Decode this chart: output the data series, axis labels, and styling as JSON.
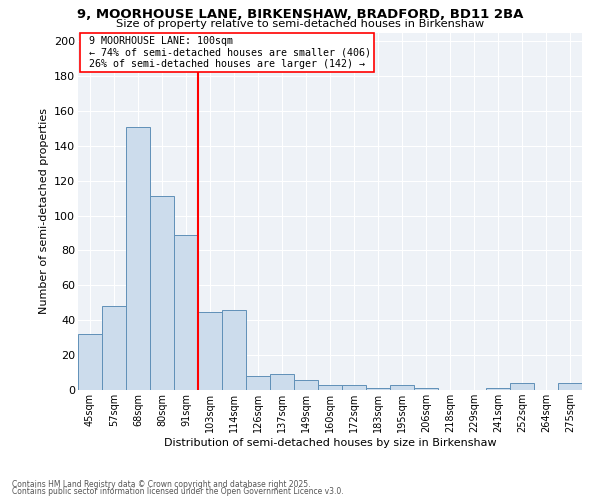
{
  "title1": "9, MOORHOUSE LANE, BIRKENSHAW, BRADFORD, BD11 2BA",
  "title2": "Size of property relative to semi-detached houses in Birkenshaw",
  "xlabel": "Distribution of semi-detached houses by size in Birkenshaw",
  "ylabel": "Number of semi-detached properties",
  "bar_labels": [
    "45sqm",
    "57sqm",
    "68sqm",
    "80sqm",
    "91sqm",
    "103sqm",
    "114sqm",
    "126sqm",
    "137sqm",
    "149sqm",
    "160sqm",
    "172sqm",
    "183sqm",
    "195sqm",
    "206sqm",
    "218sqm",
    "229sqm",
    "241sqm",
    "252sqm",
    "264sqm",
    "275sqm"
  ],
  "bar_values": [
    32,
    48,
    151,
    111,
    89,
    45,
    46,
    8,
    9,
    6,
    3,
    3,
    1,
    3,
    1,
    0,
    0,
    1,
    4,
    0,
    4
  ],
  "bar_color": "#ccdcec",
  "bar_edge_color": "#6090b8",
  "property_line_x": 5,
  "property_size": "100sqm",
  "pct_smaller": 74,
  "count_smaller": 406,
  "pct_larger": 26,
  "count_larger": 142,
  "annotation_label": "9 MOORHOUSE LANE: 100sqm",
  "ylim": [
    0,
    205
  ],
  "yticks": [
    0,
    20,
    40,
    60,
    80,
    100,
    120,
    140,
    160,
    180,
    200
  ],
  "footnote1": "Contains HM Land Registry data © Crown copyright and database right 2025.",
  "footnote2": "Contains public sector information licensed under the Open Government Licence v3.0.",
  "bg_color": "#eef2f7"
}
